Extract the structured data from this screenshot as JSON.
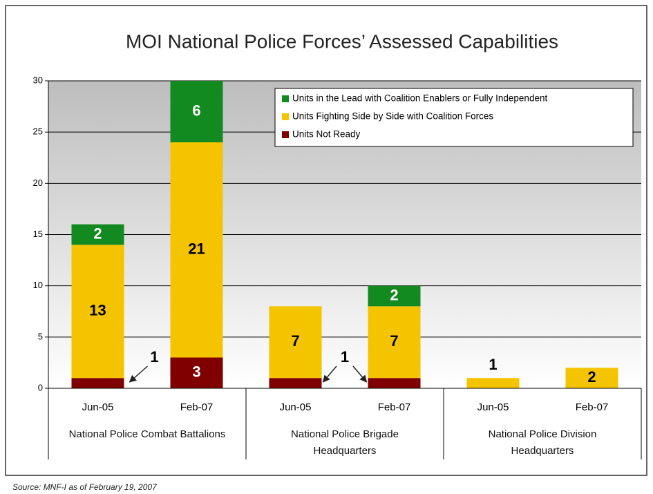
{
  "chart_data": {
    "type": "stacked_bar",
    "title": "MOI National Police Forces’ Assessed Capabilities",
    "categories": [
      "Jun-05",
      "Feb-07",
      "Jun-05",
      "Feb-07",
      "Jun-05",
      "Feb-07"
    ],
    "groups": [
      "National Police Combat Battalions",
      "National Police Brigade Headquarters",
      "National Police Division Headquarters"
    ],
    "series": [
      {
        "name": "Units Not Ready",
        "color": "#800000",
        "values": [
          1,
          3,
          1,
          1,
          0,
          0
        ]
      },
      {
        "name": "Units Fighting Side by Side with Coalition Forces",
        "color": "#f5c400",
        "values": [
          13,
          21,
          7,
          7,
          1,
          2
        ]
      },
      {
        "name": "Units in the Lead with Coalition Enablers or Fully Independent",
        "color": "#138a1f",
        "values": [
          2,
          6,
          0,
          2,
          0,
          0
        ]
      }
    ],
    "ylim": [
      0,
      30
    ],
    "yticks": [
      0,
      5,
      10,
      15,
      20,
      25,
      30
    ],
    "grid": true,
    "legend": "upper right",
    "source": "Source: MNF-I as of February 19, 2007"
  }
}
